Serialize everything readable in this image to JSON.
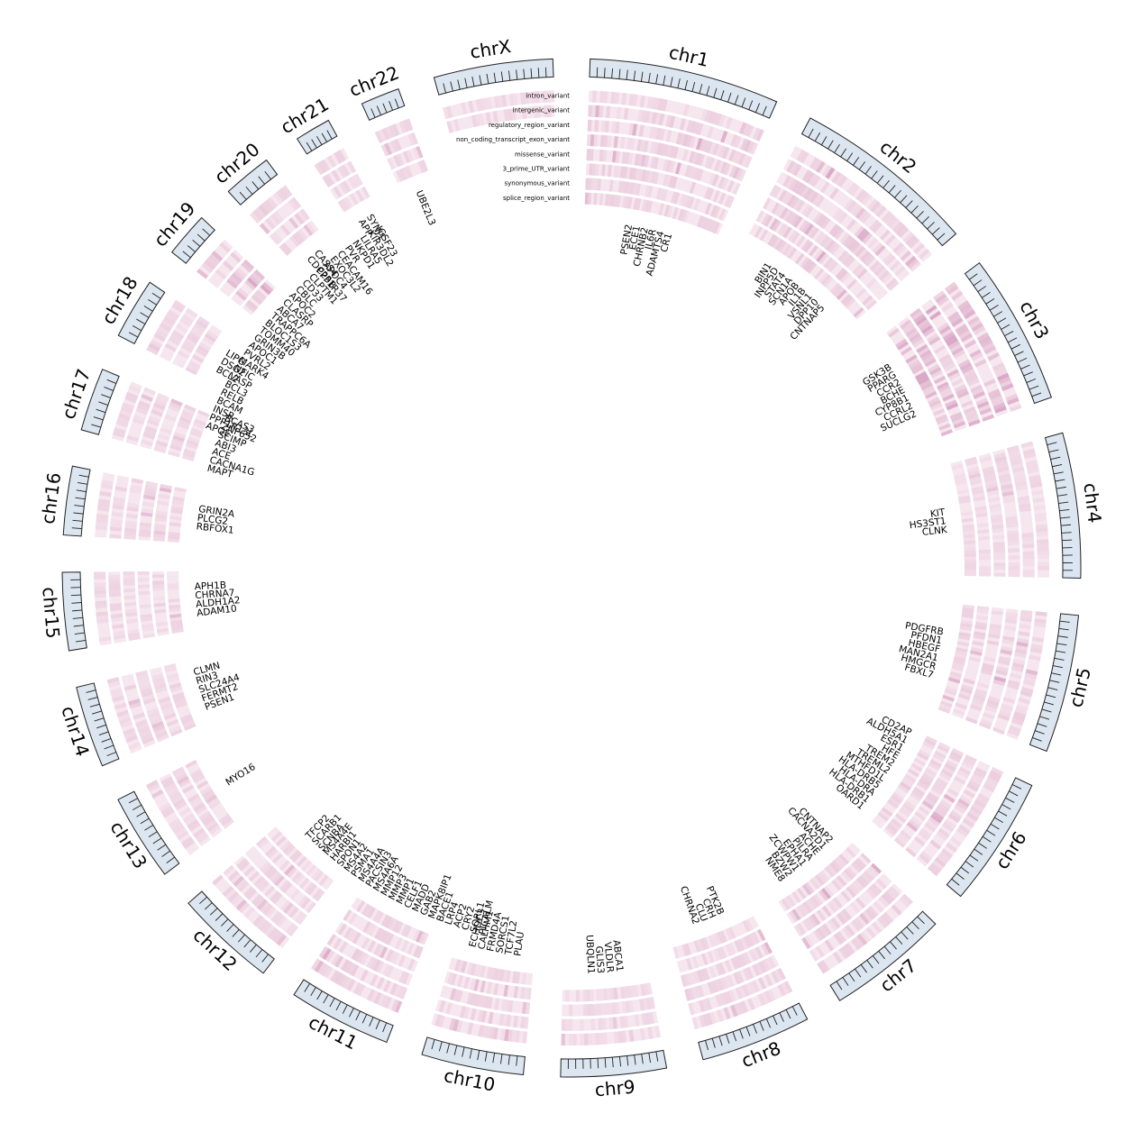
{
  "diagram": {
    "type": "circos",
    "colors": {
      "ideogram_fill": "#dce6f0",
      "ideogram_stroke": "#222222",
      "track_light": "#f6e6ee",
      "track_mid": "#eccfdf",
      "track_dark": "#dba9c8"
    },
    "tracks": [
      "intron_variant",
      "intergenic_variant",
      "regulatory_region_variant",
      "non_coding_transcript_exon_variant",
      "missense_variant",
      "3_prime_UTR_variant",
      "synonymous_variant",
      "splice_region_variant"
    ],
    "chromosomes": [
      {
        "name": "chr1",
        "length": 249,
        "intensity": 0.35,
        "tracks": 8,
        "genes": [
          "PSEN2",
          "ECE1",
          "CHRNB2",
          "IL6R",
          "ADAMTS4",
          "CR1"
        ]
      },
      {
        "name": "chr2",
        "length": 242,
        "intensity": 0.4,
        "tracks": 7,
        "genes": [
          "BIN1",
          "INPP5D",
          "STAT4",
          "SCN1A",
          "APOB",
          "IL1B",
          "VSNL1",
          "DPP10",
          "CNTNAP5"
        ]
      },
      {
        "name": "chr3",
        "length": 198,
        "intensity": 0.6,
        "tracks": 6,
        "genes": [
          "GSK3B",
          "PPARG",
          "CCR2",
          "BCHE",
          "CYP8B1",
          "CCRL2",
          "SUCLG2"
        ]
      },
      {
        "name": "chr4",
        "length": 190,
        "intensity": 0.25,
        "tracks": 6,
        "genes": [
          "KIT",
          "HS3ST1",
          "CLNK"
        ]
      },
      {
        "name": "chr5",
        "length": 181,
        "intensity": 0.35,
        "tracks": 6,
        "genes": [
          "PDGFRB",
          "PFDN1",
          "HBEGF",
          "MAN2A1",
          "HMGCR",
          "FBXL7"
        ]
      },
      {
        "name": "chr6",
        "length": 171,
        "intensity": 0.35,
        "tracks": 6,
        "genes": [
          "CD2AP",
          "ALDH5A1",
          "ESR1",
          "HFE",
          "TREM2",
          "TREML2",
          "MTHFD1L",
          "HLA-DRB5",
          "HLA-DRA",
          "HLA-DRB1",
          "OARD1"
        ]
      },
      {
        "name": "chr7",
        "length": 159,
        "intensity": 0.35,
        "tracks": 6,
        "genes": [
          "CNTNAP2",
          "CACNA2D1",
          "ACHE",
          "PILRA",
          "EPHA1",
          "ZCWPW1",
          "BZW2",
          "NME8"
        ]
      },
      {
        "name": "chr8",
        "length": 145,
        "intensity": 0.3,
        "tracks": 6,
        "genes": [
          "PTK2B",
          "CRH",
          "CLU",
          "CHRNA2"
        ]
      },
      {
        "name": "chr9",
        "length": 138,
        "intensity": 0.25,
        "tracks": 4,
        "genes": [
          "ABCA1",
          "VLDLR",
          "GLIS3",
          "UBQLN1"
        ]
      },
      {
        "name": "chr10",
        "length": 134,
        "intensity": 0.3,
        "tracks": 5,
        "genes": [
          "PLAU",
          "TCF7L2",
          "SORCS1",
          "FRMD4A",
          "CALHM1",
          "ECHDC3"
        ]
      },
      {
        "name": "chr11",
        "length": 135,
        "intensity": 0.35,
        "tracks": 6,
        "genes": [
          "PICALM",
          "SORL1",
          "CRY2",
          "ACP2",
          "LRP4",
          "BACE1",
          "MAPK8IP1",
          "GAB2",
          "MADD",
          "CELF1",
          "MMP1",
          "MMP3",
          "MMP12",
          "MS4A6A",
          "PACSIN3",
          "MS4A4A",
          "PSMA1",
          "MS4A2",
          "SPON1",
          "HARBI1",
          "MS4A4E"
        ]
      },
      {
        "name": "chr12",
        "length": 133,
        "intensity": 0.3,
        "tracks": 6,
        "genes": [
          "SCNBA",
          "SCARB1",
          "TFCP2"
        ]
      },
      {
        "name": "chr13",
        "length": 114,
        "intensity": 0.3,
        "tracks": 4,
        "genes": [
          "MYO16"
        ]
      },
      {
        "name": "chr14",
        "length": 107,
        "intensity": 0.3,
        "tracks": 5,
        "genes": [
          "PSEN1",
          "FERMT2",
          "SLC24A4",
          "RIN3",
          "CLMN"
        ]
      },
      {
        "name": "chr15",
        "length": 102,
        "intensity": 0.3,
        "tracks": 6,
        "genes": [
          "ADAM10",
          "ALDH1A2",
          "CHRNA7",
          "APH1B"
        ]
      },
      {
        "name": "chr16",
        "length": 90,
        "intensity": 0.3,
        "tracks": 6,
        "genes": [
          "RBFOX1",
          "PLCG2",
          "GRIN2A"
        ]
      },
      {
        "name": "chr17",
        "length": 83,
        "intensity": 0.3,
        "tracks": 6,
        "genes": [
          "MAPT",
          "CACNA1G",
          "ACE",
          "ABI3",
          "SCIMP",
          "ZNF652",
          "BCAS3"
        ]
      },
      {
        "name": "chr18",
        "length": 80,
        "intensity": 0.3,
        "tracks": 4,
        "genes": [
          "BCL2",
          "DSG2",
          "LIPG"
        ]
      },
      {
        "name": "chr19",
        "length": 59,
        "intensity": 0.5,
        "tracks": 5,
        "genes": [
          "APOE",
          "PPP1R13L",
          "INSR",
          "BCAM",
          "RELB",
          "BCL3",
          "VASP",
          "NFIC",
          "MARK4",
          "PVRL2",
          "APOC1",
          "GRIN3B",
          "TOMM40",
          "BLOC1S3",
          "TRAPPC6A",
          "ABCA7",
          "CLASRP",
          "APOC2",
          "CBLC",
          "CD33",
          "CLPTM1",
          "PPP1R37",
          "APOC4",
          "EXOC3L2",
          "CEACAM16",
          "PVR",
          "NKPD1",
          "LILRA5",
          "KIR3DL2",
          "IGSF23"
        ]
      },
      {
        "name": "chr20",
        "length": 64,
        "intensity": 0.3,
        "tracks": 4,
        "genes": [
          "CDC25B",
          "CASS4"
        ]
      },
      {
        "name": "chr21",
        "length": 47,
        "intensity": 0.3,
        "tracks": 4,
        "genes": [
          "APP",
          "SYNJ1"
        ]
      },
      {
        "name": "chr22",
        "length": 51,
        "intensity": 0.3,
        "tracks": 4,
        "genes": [
          "UBE2L3"
        ]
      },
      {
        "name": "chrX",
        "length": 156,
        "intensity": 0.25,
        "tracks": 2,
        "genes": []
      }
    ]
  }
}
